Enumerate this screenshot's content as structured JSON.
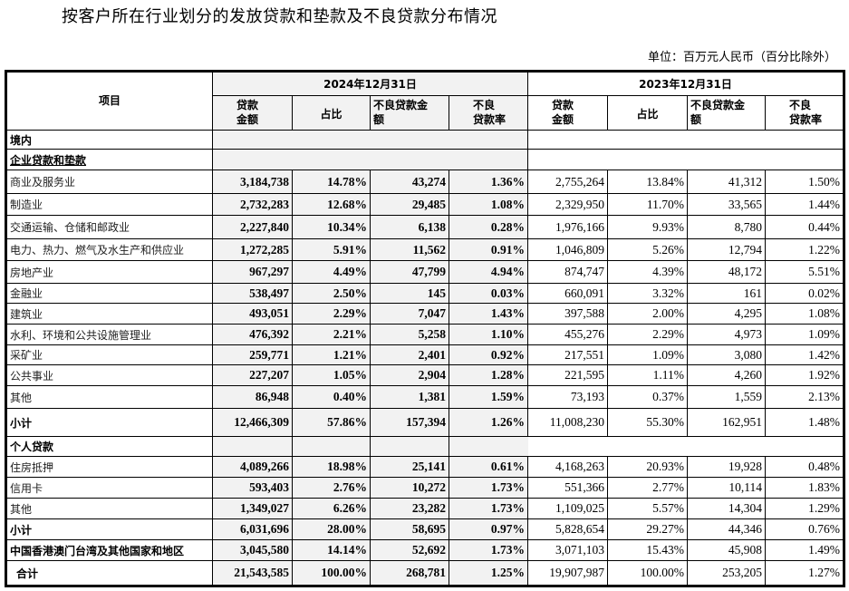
{
  "title": "按客户所在行业划分的发放贷款和垫款及不良贷款分布情况",
  "unit": "单位：百万元人民币（百分比除外）",
  "header": {
    "item": "项目",
    "period_2024": "2024年12月31日",
    "period_2023": "2023年12月31日",
    "cols": [
      "贷款\n金额",
      "占比",
      "不良贷款金\n额",
      "不良\n贷款率"
    ]
  },
  "sections": {
    "domestic": "境内",
    "corporate": "企业贷款和垫款",
    "personal": "个人贷款"
  },
  "corporate_rows": [
    [
      "商业及服务业",
      "3,184,738",
      "14.78%",
      "43,274",
      "1.36%",
      "2,755,264",
      "13.84%",
      "41,312",
      "1.50%"
    ],
    [
      "制造业",
      "2,732,283",
      "12.68%",
      "29,485",
      "1.08%",
      "2,329,950",
      "11.70%",
      "33,565",
      "1.44%"
    ],
    [
      "交通运输、仓储和邮政业",
      "2,227,840",
      "10.34%",
      "6,138",
      "0.28%",
      "1,976,166",
      "9.93%",
      "8,780",
      "0.44%"
    ],
    [
      "电力、热力、燃气及水生产和供应业",
      "1,272,285",
      "5.91%",
      "11,562",
      "0.91%",
      "1,046,809",
      "5.26%",
      "12,794",
      "1.22%"
    ],
    [
      "房地产业",
      "967,297",
      "4.49%",
      "47,799",
      "4.94%",
      "874,747",
      "4.39%",
      "48,172",
      "5.51%"
    ],
    [
      "金融业",
      "538,497",
      "2.50%",
      "145",
      "0.03%",
      "660,091",
      "3.32%",
      "161",
      "0.02%"
    ],
    [
      "建筑业",
      "493,051",
      "2.29%",
      "7,047",
      "1.43%",
      "397,588",
      "2.00%",
      "4,295",
      "1.08%"
    ],
    [
      "水利、环境和公共设施管理业",
      "476,392",
      "2.21%",
      "5,258",
      "1.10%",
      "455,276",
      "2.29%",
      "4,973",
      "1.09%"
    ],
    [
      "采矿业",
      "259,771",
      "1.21%",
      "2,401",
      "0.92%",
      "217,551",
      "1.09%",
      "3,080",
      "1.42%"
    ],
    [
      "公共事业",
      "227,207",
      "1.05%",
      "2,904",
      "1.28%",
      "221,595",
      "1.11%",
      "4,260",
      "1.92%"
    ],
    [
      "其他",
      "86,948",
      "0.40%",
      "1,381",
      "1.59%",
      "73,193",
      "0.37%",
      "1,559",
      "2.13%"
    ]
  ],
  "corporate_subtotal": [
    "小计",
    "12,466,309",
    "57.86%",
    "157,394",
    "1.26%",
    "11,008,230",
    "55.30%",
    "162,951",
    "1.48%"
  ],
  "personal_rows": [
    [
      "住房抵押",
      "4,089,266",
      "18.98%",
      "25,141",
      "0.61%",
      "4,168,263",
      "20.93%",
      "19,928",
      "0.48%"
    ],
    [
      "信用卡",
      "593,403",
      "2.76%",
      "10,272",
      "1.73%",
      "551,366",
      "2.77%",
      "10,114",
      "1.83%"
    ],
    [
      "其他",
      "1,349,027",
      "6.26%",
      "23,282",
      "1.73%",
      "1,109,025",
      "5.57%",
      "14,304",
      "1.29%"
    ]
  ],
  "personal_subtotal": [
    "小计",
    "6,031,696",
    "28.00%",
    "58,695",
    "0.97%",
    "5,828,654",
    "29.27%",
    "44,346",
    "0.76%"
  ],
  "overseas": [
    "中国香港澳门台湾及其他国家和地区",
    "3,045,580",
    "14.14%",
    "52,692",
    "1.73%",
    "3,071,103",
    "15.43%",
    "45,908",
    "1.49%"
  ],
  "total": [
    "合计",
    "21,543,585",
    "100.00%",
    "268,781",
    "1.25%",
    "19,907,987",
    "100.00%",
    "253,205",
    "1.27%"
  ]
}
